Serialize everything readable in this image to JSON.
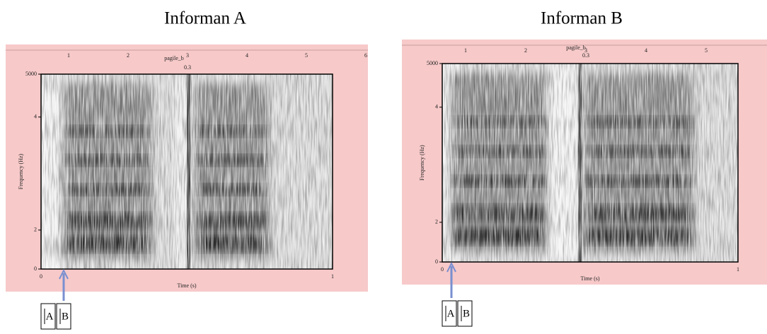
{
  "figure": {
    "panels": [
      {
        "title": "Informan A",
        "file_label": "pagile_b",
        "marker_label": "0.3",
        "top_ticks": [
          "1",
          "2",
          "3",
          "4",
          "5",
          "6"
        ],
        "y_ticks": [
          "5000",
          "4",
          "2",
          "0"
        ],
        "x_ticks": [
          "0",
          "1"
        ],
        "y_label": "Frequency (Hz)",
        "x_label": "Time (s)",
        "boxes": [
          "A",
          "B"
        ]
      },
      {
        "title": "Informan B",
        "file_label": "pagile_b",
        "marker_label": "0.3",
        "top_ticks": [
          "1",
          "2",
          "3",
          "4",
          "5"
        ],
        "y_ticks": [
          "5000",
          "4",
          "2",
          "0"
        ],
        "x_ticks": [
          "0",
          "1"
        ],
        "y_label": "Frequency (Hz)",
        "x_label": "Time (s)",
        "boxes": [
          "A",
          "B"
        ]
      }
    ]
  }
}
